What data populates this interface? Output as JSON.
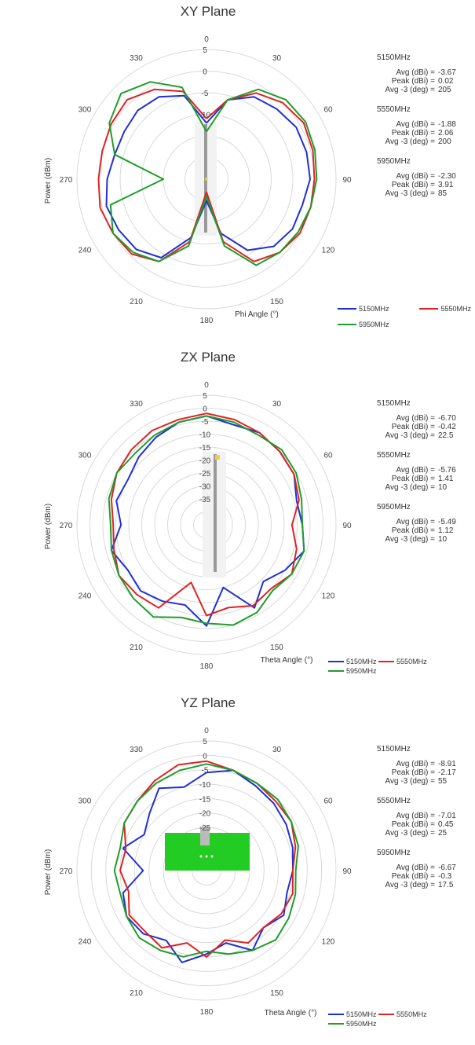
{
  "legend_labels": [
    "5150MHz",
    "5550MHz",
    "5950MHz"
  ],
  "series_colors": [
    "#1f2fd6",
    "#e02222",
    "#1e9e2a"
  ],
  "chart_data": [
    {
      "type": "polar-line",
      "title": "XY Plane",
      "angle_label": "Phi  Angle (°)",
      "radial_label": "Power (dBm)",
      "rlim": [
        -25,
        5
      ],
      "radial_ticks": [
        "5",
        "0",
        "-5",
        "-10"
      ],
      "angle_ticks": [
        "0",
        "30",
        "60",
        "90",
        "120",
        "150",
        "180",
        "210",
        "240",
        "270",
        "300",
        "330"
      ],
      "stats": [
        {
          "freq": "5150MHz",
          "avg_label": "Avg (dBi) =",
          "avg": "-3.67",
          "peak_label": "Peak (dBi) =",
          "peak": "0.02",
          "avg3_label": "Avg -3 (deg) =",
          "avg3": "205"
        },
        {
          "freq": "5550MHz",
          "avg_label": "Avg (dBi) =",
          "avg": "-1.88",
          "peak_label": "Peak (dBi) =",
          "peak": "2.06",
          "avg3_label": "Avg -3 (deg) =",
          "avg3": "200"
        },
        {
          "freq": "5950MHz",
          "avg_label": "Avg (dBi) =",
          "avg": "-2.30",
          "peak_label": "Peak (dBi) =",
          "peak": "3.91",
          "avg3_label": "Avg -3 (deg) =",
          "avg3": "85"
        }
      ],
      "series": [
        {
          "name": "5150MHz",
          "angles": [
            0,
            15,
            30,
            45,
            60,
            75,
            90,
            105,
            120,
            135,
            150,
            165,
            180,
            195,
            210,
            225,
            240,
            255,
            270,
            285,
            300,
            315,
            330,
            345
          ],
          "values": [
            -12,
            -6,
            -3,
            -2,
            -1,
            -1,
            -1,
            -2,
            -2,
            -3,
            -6,
            -12,
            -20,
            -11,
            -4,
            -2,
            -1.5,
            -1,
            -2,
            -3,
            -3,
            -2.5,
            -3,
            -5
          ]
        },
        {
          "name": "5550MHz",
          "angles": [
            0,
            15,
            30,
            45,
            60,
            75,
            90,
            105,
            120,
            135,
            150,
            165,
            180,
            195,
            210,
            225,
            240,
            255,
            270,
            285,
            300,
            315,
            330,
            345
          ],
          "values": [
            -11,
            -6,
            -2,
            0,
            1,
            0.5,
            0,
            0,
            0,
            -1,
            -3,
            -10,
            -22,
            -10,
            -3,
            -0.5,
            0,
            0.5,
            0,
            0,
            0.5,
            1,
            -1,
            -4
          ]
        },
        {
          "name": "5950MHz",
          "angles": [
            0,
            15,
            30,
            45,
            60,
            75,
            90,
            105,
            120,
            135,
            150,
            165,
            180,
            195,
            210,
            225,
            240,
            255,
            270,
            285,
            300,
            315,
            330,
            345
          ],
          "values": [
            -14,
            -6,
            -1,
            1,
            1.5,
            1,
            0.5,
            0,
            -0.5,
            -1,
            -2,
            -9,
            -21,
            -9,
            -3,
            -1,
            0,
            -2,
            -15,
            -3,
            1,
            3,
            1,
            -3
          ]
        }
      ]
    },
    {
      "type": "polar-line",
      "title": "ZX Plane",
      "angle_label": "Theta  Angle (°)",
      "radial_label": "Power (dBm)",
      "rlim": [
        -45,
        5
      ],
      "radial_ticks": [
        "5",
        "0",
        "-5",
        "-10",
        "-15",
        "-20",
        "-25",
        "-30",
        "-35"
      ],
      "angle_ticks": [
        "0",
        "30",
        "60",
        "90",
        "120",
        "150",
        "180",
        "210",
        "240",
        "270",
        "300",
        "330"
      ],
      "stats": [
        {
          "freq": "5150MHz",
          "avg_label": "Avg (dBi) =",
          "avg": "-6.70",
          "peak_label": "Peak (dBi) =",
          "peak": "-0.42",
          "avg3_label": "Avg -3 (deg) =",
          "avg3": "22.5"
        },
        {
          "freq": "5550MHz",
          "avg_label": "Avg (dBi) =",
          "avg": "-5.76",
          "peak_label": "Peak (dBi) =",
          "peak": "1.41",
          "avg3_label": "Avg -3 (deg) =",
          "avg3": "10"
        },
        {
          "freq": "5950MHz",
          "avg_label": "Avg (dBi) =",
          "avg": "-5.49",
          "peak_label": "Peak (dBi) =",
          "peak": "1.12",
          "avg3_label": "Avg -3 (deg) =",
          "avg3": "10"
        }
      ],
      "series": [
        {
          "name": "5150MHz",
          "angles": [
            0,
            15,
            30,
            45,
            60,
            75,
            90,
            105,
            120,
            135,
            150,
            165,
            180,
            195,
            210,
            225,
            240,
            255,
            270,
            285,
            300,
            315,
            330,
            345
          ],
          "values": [
            -3,
            -5,
            -4,
            -5,
            -6,
            -9,
            -8,
            -6,
            -10,
            -14,
            -8,
            -20,
            -6,
            -13,
            -11,
            -9,
            -10,
            -7,
            -12,
            -9,
            -10,
            -8,
            -6,
            -4
          ]
        },
        {
          "name": "5550MHz",
          "angles": [
            0,
            15,
            30,
            45,
            60,
            75,
            90,
            105,
            120,
            135,
            150,
            165,
            180,
            195,
            210,
            225,
            240,
            255,
            270,
            285,
            300,
            315,
            330,
            345
          ],
          "values": [
            -2,
            -3,
            -4,
            -5,
            -6,
            -8,
            -12,
            -9,
            -7,
            -10,
            -9,
            -12,
            -10,
            -22,
            -8,
            -7,
            -6,
            -8,
            -9,
            -7,
            -5,
            -4,
            -3,
            -3
          ]
        },
        {
          "name": "5950MHz",
          "angles": [
            0,
            15,
            30,
            45,
            60,
            75,
            90,
            105,
            120,
            135,
            150,
            165,
            180,
            195,
            210,
            225,
            240,
            255,
            270,
            285,
            300,
            315,
            330,
            345
          ],
          "values": [
            -3,
            -4,
            -5,
            -4,
            -5,
            -7,
            -8,
            -6,
            -7,
            -9,
            -6,
            -5,
            -7,
            -8,
            -4,
            -5,
            -6,
            -7,
            -8,
            -6,
            -5,
            -6,
            -5,
            -4
          ]
        }
      ]
    },
    {
      "type": "polar-line",
      "title": "YZ Plane",
      "angle_label": "Theta  Angle (°)",
      "radial_label": "Power (dBm)",
      "rlim": [
        -40,
        5
      ],
      "radial_ticks": [
        "5",
        "0",
        "-5",
        "-10",
        "-15",
        "-20",
        "-25"
      ],
      "angle_ticks": [
        "0",
        "30",
        "60",
        "90",
        "120",
        "150",
        "180",
        "210",
        "240",
        "270",
        "300",
        "330"
      ],
      "stats": [
        {
          "freq": "5150MHz",
          "avg_label": "Avg (dBi) =",
          "avg": "-8.91",
          "peak_label": "Peak (dBi) =",
          "peak": "-2.17",
          "avg3_label": "Avg -3 (deg) =",
          "avg3": "55"
        },
        {
          "freq": "5550MHz",
          "avg_label": "Avg (dBi) =",
          "avg": "-7.01",
          "peak_label": "Peak (dBi) =",
          "peak": "0.45",
          "avg3_label": "Avg -3 (deg) =",
          "avg3": "25"
        },
        {
          "freq": "5950MHz",
          "avg_label": "Avg (dBi) =",
          "avg": "-6.67",
          "peak_label": "Peak (dBi) =",
          "peak": "-0.3",
          "avg3_label": "Avg -3 (deg) =",
          "avg3": "17.5"
        }
      ],
      "series": [
        {
          "name": "5150MHz",
          "angles": [
            0,
            15,
            30,
            45,
            60,
            75,
            90,
            105,
            120,
            135,
            150,
            165,
            180,
            195,
            210,
            225,
            240,
            255,
            270,
            285,
            300,
            315,
            330,
            345
          ],
          "values": [
            -6,
            -4,
            -6,
            -7,
            -8,
            -9,
            -10,
            -11,
            -9,
            -12,
            -8,
            -14,
            -11,
            -7,
            -12,
            -9,
            -8,
            -10,
            -18,
            -10,
            -15,
            -12,
            -7,
            -10
          ]
        },
        {
          "name": "5550MHz",
          "angles": [
            0,
            15,
            30,
            45,
            60,
            75,
            90,
            105,
            120,
            135,
            150,
            165,
            180,
            195,
            210,
            225,
            240,
            255,
            270,
            285,
            300,
            315,
            330,
            345
          ],
          "values": [
            -2,
            -4,
            -5,
            -6,
            -6,
            -8,
            -10,
            -9,
            -10,
            -12,
            -11,
            -15,
            -10,
            -14,
            -9,
            -10,
            -9,
            -12,
            -10,
            -11,
            -7,
            -6,
            -4,
            -2
          ]
        },
        {
          "name": "5950MHz",
          "angles": [
            0,
            15,
            30,
            45,
            60,
            75,
            90,
            105,
            120,
            135,
            150,
            165,
            180,
            195,
            210,
            225,
            240,
            255,
            270,
            285,
            300,
            315,
            330,
            345
          ],
          "values": [
            -3,
            -4,
            -5,
            -5,
            -6,
            -7,
            -9,
            -8,
            -7,
            -6,
            -8,
            -10,
            -12,
            -9,
            -8,
            -7,
            -8,
            -9,
            -8,
            -9,
            -7,
            -6,
            -5,
            -4
          ]
        }
      ]
    }
  ]
}
